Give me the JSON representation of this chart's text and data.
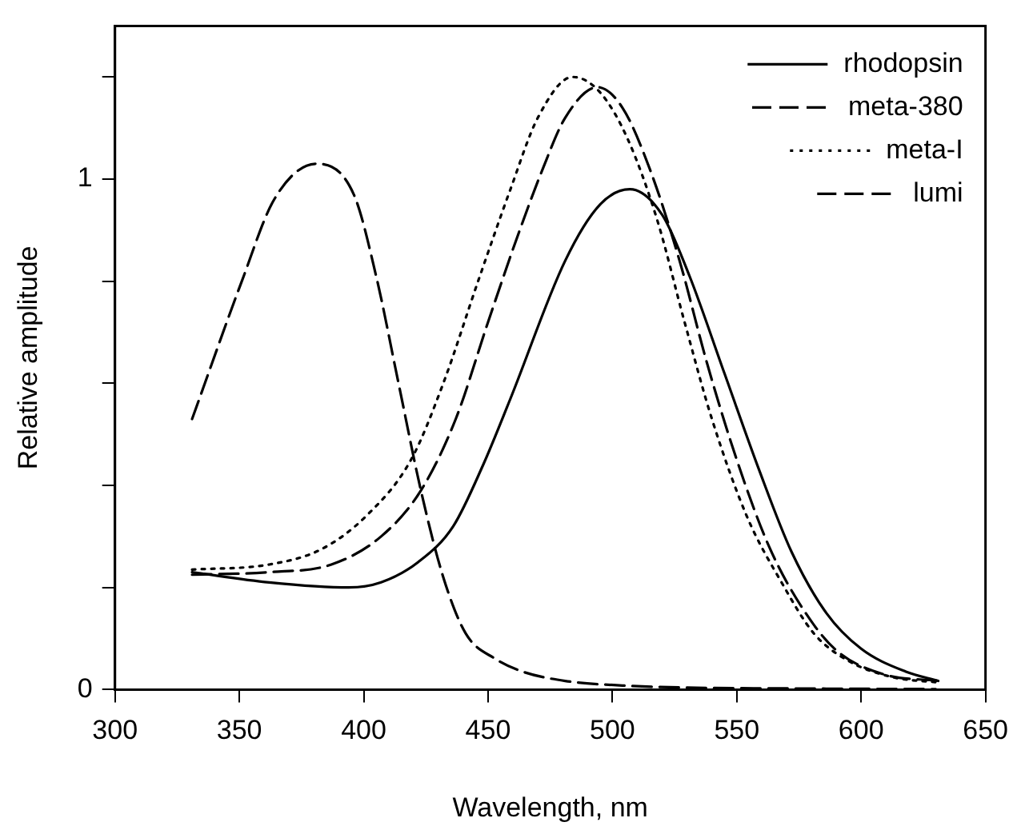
{
  "chart_data": {
    "type": "line",
    "xlabel": "Wavelength, nm",
    "ylabel": "Relative amplitude",
    "xlim": [
      300,
      650
    ],
    "xticks": [
      300,
      350,
      400,
      450,
      500,
      550,
      600,
      650
    ],
    "ylim": [
      0,
      1.3
    ],
    "yticks": [
      0,
      {
        "value": 0.2,
        "label": null
      },
      {
        "value": 0.4,
        "label": null
      },
      {
        "value": 0.6,
        "label": null
      },
      {
        "value": 0.8,
        "label": null
      },
      1,
      {
        "value": 1.2,
        "label": null
      }
    ],
    "grid": false,
    "legend": "top right",
    "marker": "none",
    "series": [
      {
        "name": "rhodopsin",
        "color": "#000000",
        "line_style": "solid",
        "x": [
          331,
          362,
          394,
          407,
          422,
          436,
          448,
          459,
          481,
          495,
          507,
          520,
          531,
          545,
          559,
          572,
          586,
          600,
          618,
          631
        ],
        "values": [
          0.23,
          0.21,
          0.2,
          0.21,
          0.25,
          0.32,
          0.44,
          0.57,
          0.84,
          0.95,
          0.98,
          0.93,
          0.81,
          0.62,
          0.43,
          0.27,
          0.15,
          0.08,
          0.035,
          0.017
        ]
      },
      {
        "name": "meta-380",
        "color": "#000000",
        "line_style": "dashed",
        "x": [
          331,
          351,
          364,
          381,
          396,
          405,
          414,
          423,
          432,
          441,
          453,
          464,
          481,
          504,
          530,
          580,
          630
        ],
        "values": [
          0.53,
          0.8,
          0.96,
          1.03,
          0.97,
          0.81,
          0.6,
          0.39,
          0.22,
          0.11,
          0.06,
          0.035,
          0.017,
          0.008,
          0.004,
          0.002,
          0.001
        ]
      },
      {
        "name": "meta-I",
        "color": "#000000",
        "line_style": "dotted",
        "x": [
          331,
          362,
          383,
          401,
          419,
          432,
          446,
          459,
          470,
          484,
          495,
          506,
          518,
          529,
          540,
          554,
          568,
          581,
          595,
          613,
          631
        ],
        "values": [
          0.235,
          0.245,
          0.275,
          0.34,
          0.45,
          0.6,
          0.8,
          0.98,
          1.12,
          1.2,
          1.17,
          1.08,
          0.92,
          0.72,
          0.53,
          0.34,
          0.21,
          0.11,
          0.056,
          0.024,
          0.014
        ]
      },
      {
        "name": "lumi",
        "color": "#000000",
        "line_style": "dashed",
        "x": [
          331,
          362,
          387,
          407,
          423,
          437,
          450,
          462,
          472,
          481,
          494,
          504,
          515,
          527,
          538,
          550,
          563,
          577,
          590,
          609,
          631
        ],
        "values": [
          0.225,
          0.23,
          0.245,
          0.3,
          0.39,
          0.53,
          0.72,
          0.89,
          1.02,
          1.12,
          1.18,
          1.14,
          1.02,
          0.84,
          0.64,
          0.45,
          0.28,
          0.155,
          0.077,
          0.03,
          0.017
        ]
      }
    ]
  }
}
